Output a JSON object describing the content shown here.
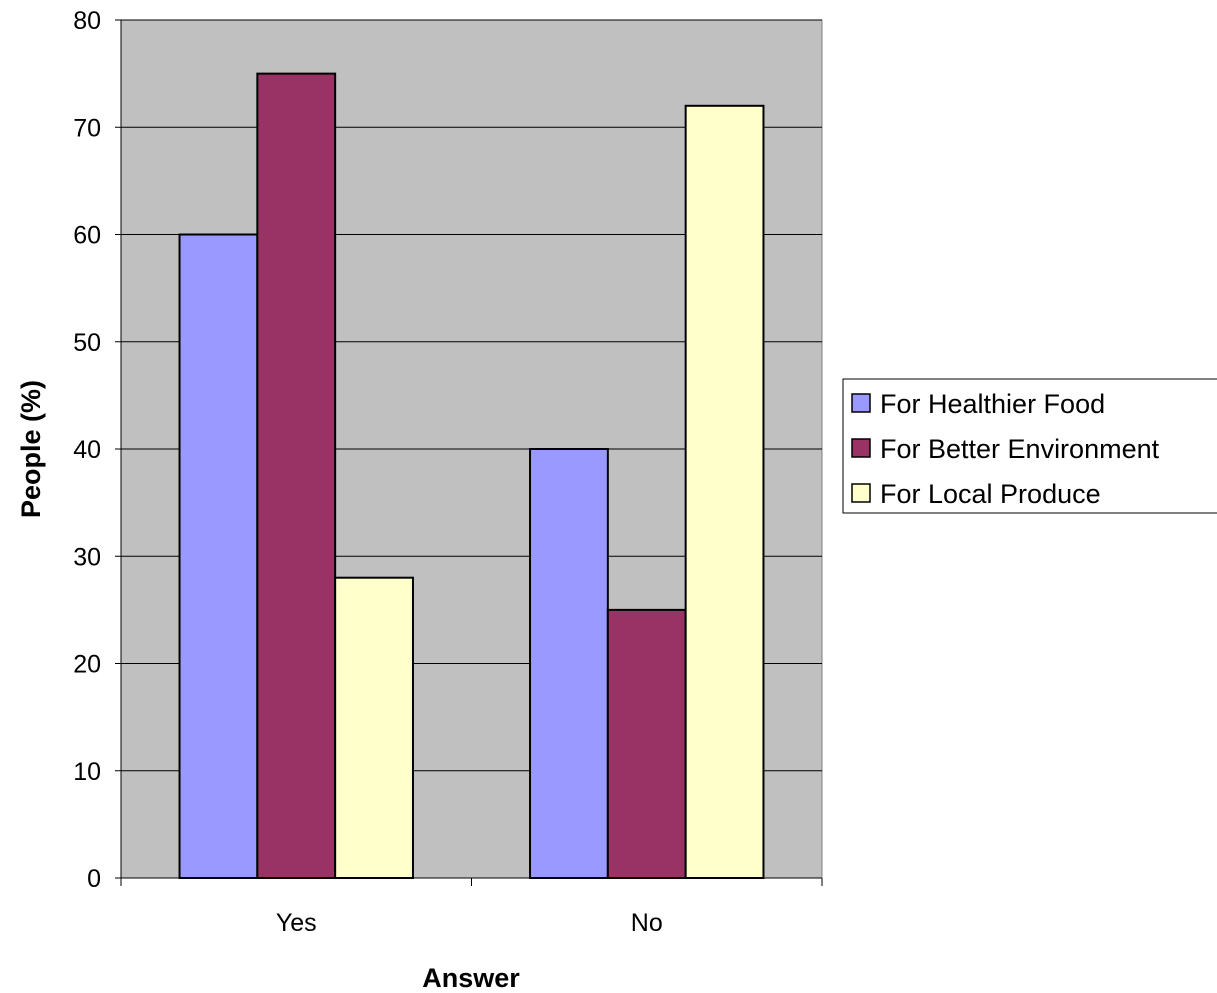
{
  "chart_data": {
    "type": "bar",
    "categories": [
      "Yes",
      "No"
    ],
    "series": [
      {
        "name": "For Healthier Food",
        "values": [
          60,
          40
        ],
        "color": "#9999ff"
      },
      {
        "name": "For Better Environment",
        "values": [
          75,
          25
        ],
        "color": "#993366"
      },
      {
        "name": "For Local Produce",
        "values": [
          28,
          72
        ],
        "color": "#ffffcc"
      }
    ],
    "xlabel": "Answer",
    "ylabel": "People (%)",
    "ylim": [
      0,
      80
    ],
    "yticks": [
      0,
      10,
      20,
      30,
      40,
      50,
      60,
      70,
      80
    ],
    "grid": true,
    "plot_background": "#c0c0c0",
    "legend_position": "right"
  }
}
